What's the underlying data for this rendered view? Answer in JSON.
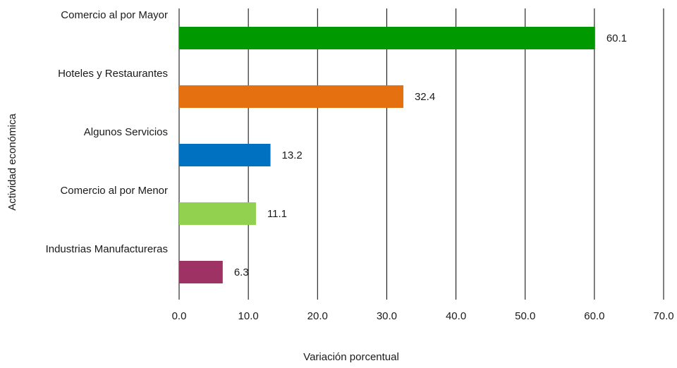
{
  "chart_data": {
    "type": "bar",
    "orientation": "horizontal",
    "categories": [
      "Comercio al por Mayor",
      "Hoteles y Restaurantes",
      "Algunos Servicios",
      "Comercio al por Menor",
      "Industrias Manufactureras"
    ],
    "values": [
      60.1,
      32.4,
      13.2,
      11.1,
      6.3
    ],
    "value_labels": [
      "60.1",
      "32.4",
      "13.2",
      "11.1",
      "6.3"
    ],
    "colors": [
      "#009900",
      "#e5700f",
      "#0070c0",
      "#92d050",
      "#9e3264"
    ],
    "xlabel": "Variación porcentual",
    "ylabel": "Actividad económica",
    "xlim": [
      0,
      70
    ],
    "xticks": [
      0,
      10,
      20,
      30,
      40,
      50,
      60,
      70
    ],
    "xtick_labels": [
      "0.0",
      "10.0",
      "20.0",
      "30.0",
      "40.0",
      "50.0",
      "60.0",
      "70.0"
    ],
    "grid": "vertical",
    "legend": "none"
  }
}
